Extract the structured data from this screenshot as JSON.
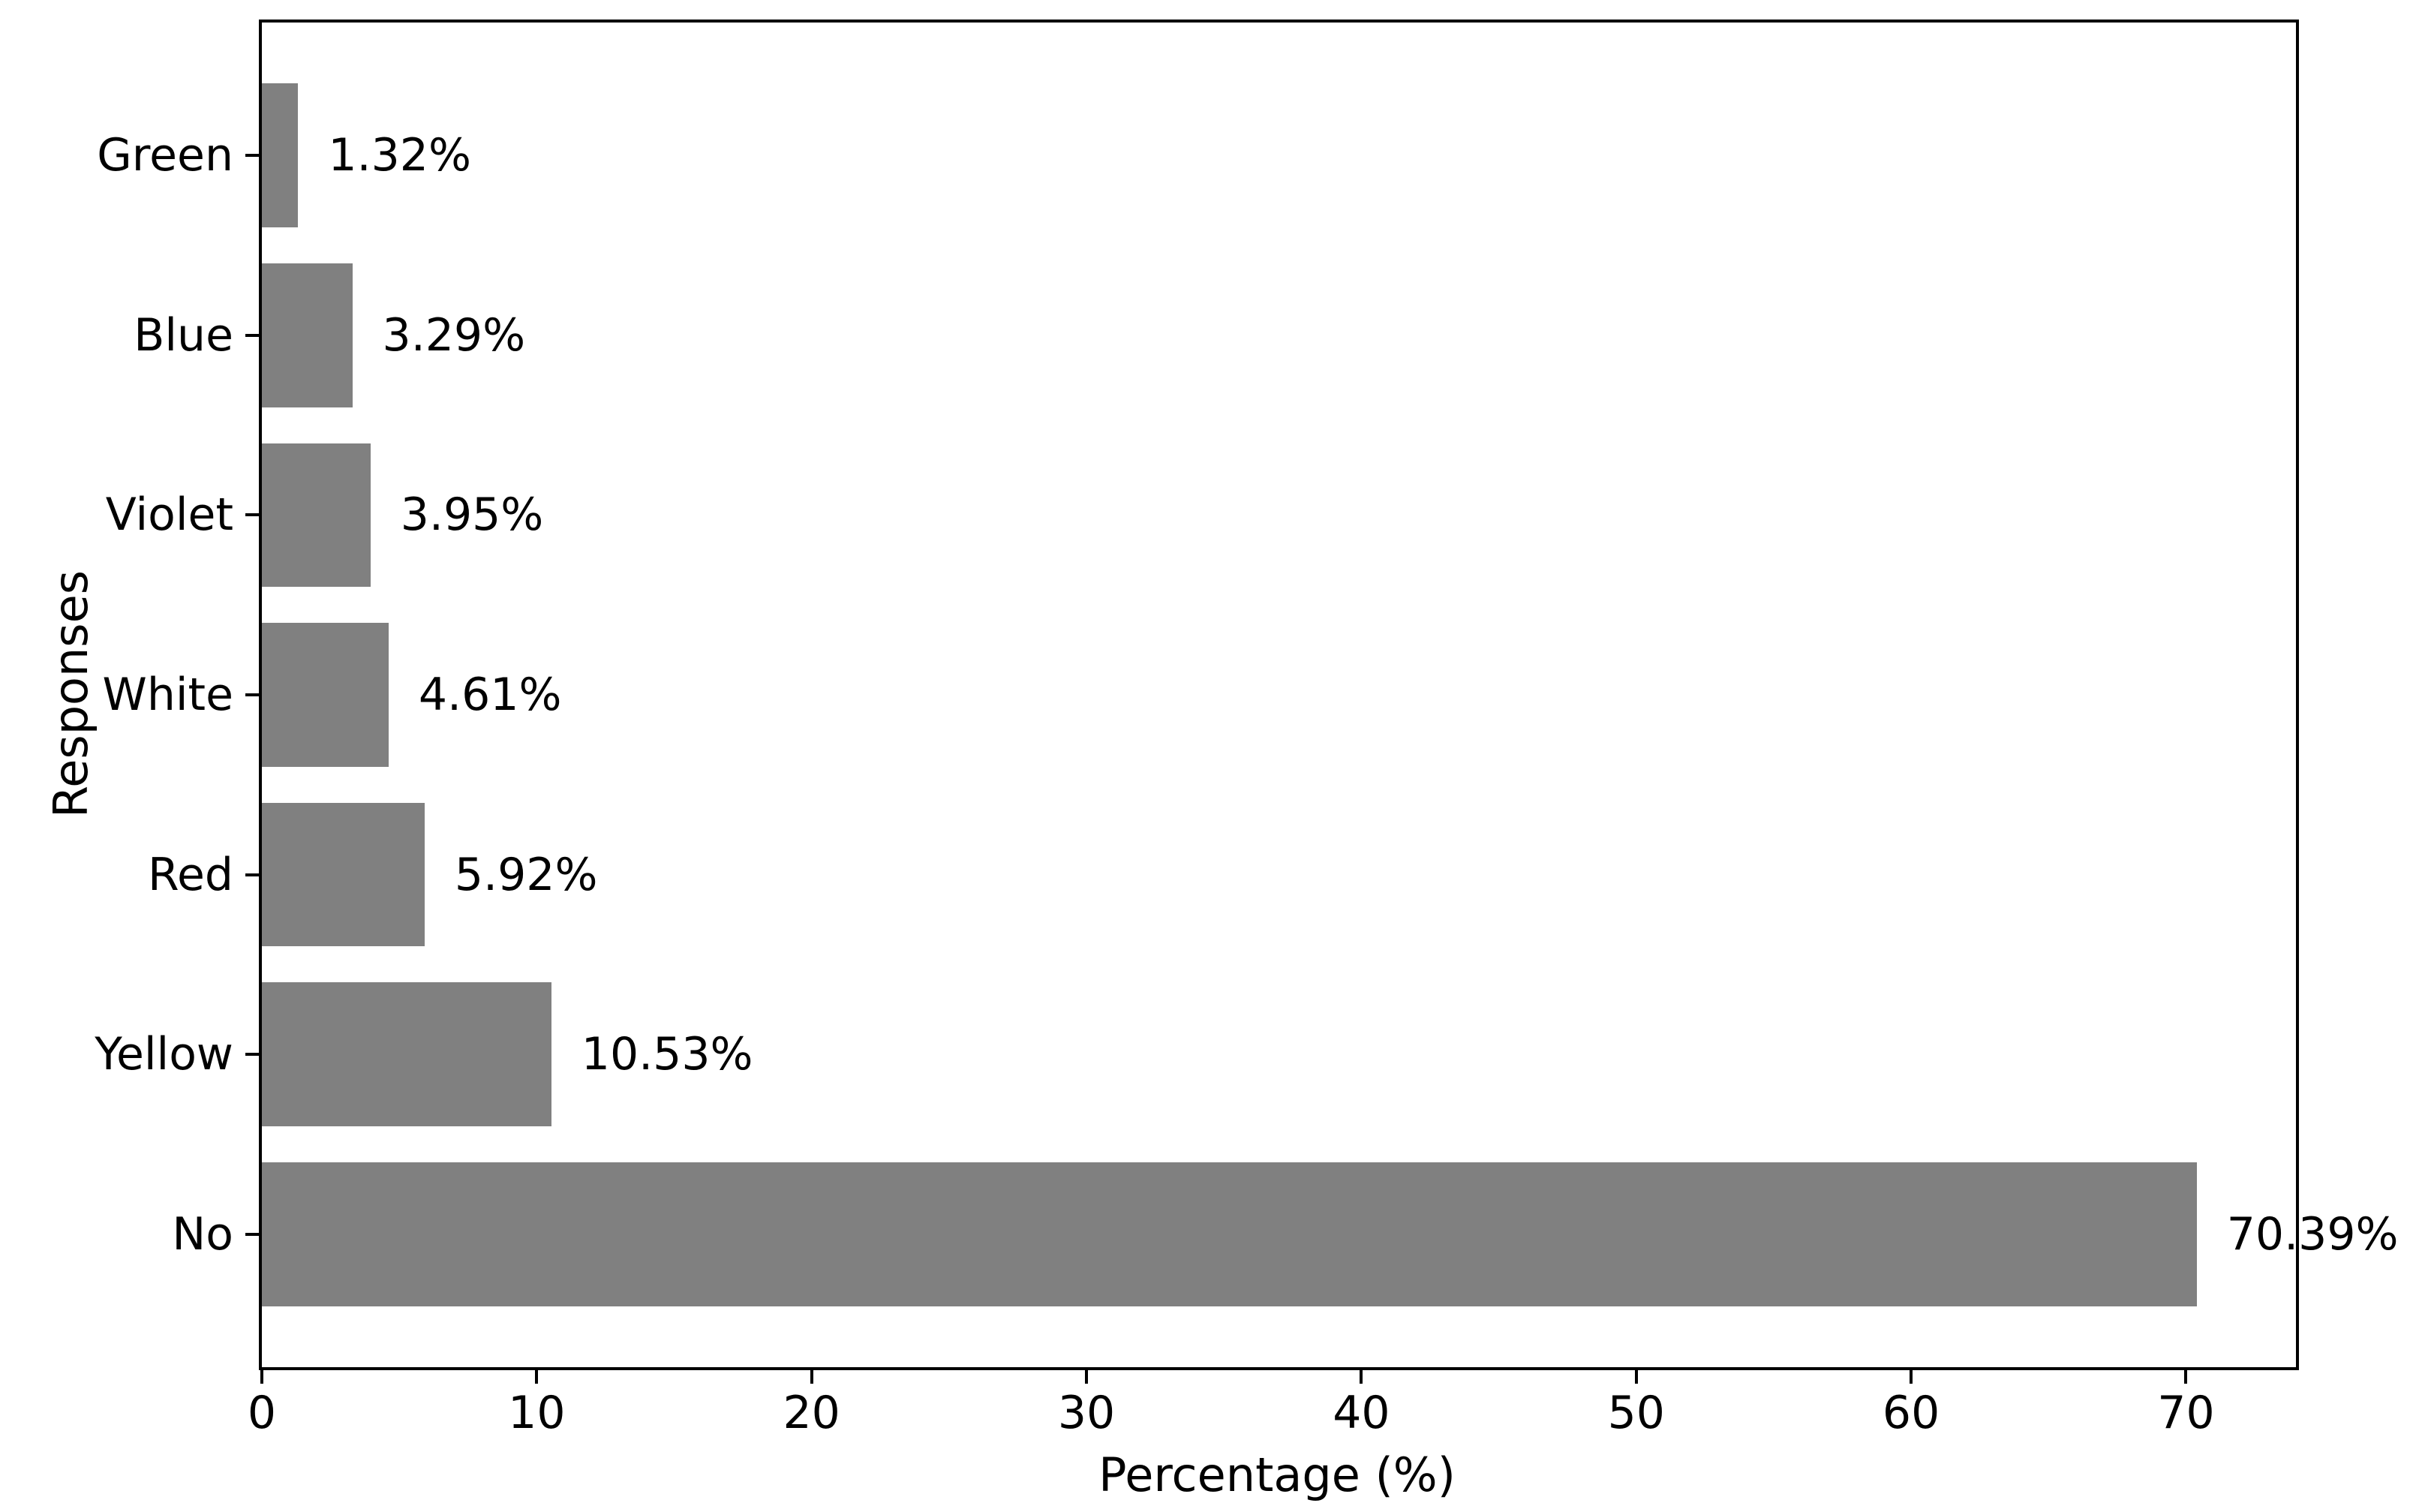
{
  "figure": {
    "background": "#ffffff"
  },
  "chart_data": {
    "type": "bar",
    "orientation": "horizontal",
    "title": "",
    "xlabel": "Percentage (%)",
    "ylabel": "Responses",
    "categories": [
      "Green",
      "Blue",
      "Violet",
      "White",
      "Red",
      "Yellow",
      "No"
    ],
    "values": [
      1.32,
      3.29,
      3.95,
      4.61,
      5.92,
      10.53,
      70.39
    ],
    "value_labels": [
      "1.32%",
      "3.29%",
      "3.95%",
      "4.61%",
      "5.92%",
      "10.53%",
      "70.39%"
    ],
    "x_ticks": [
      0,
      10,
      20,
      30,
      40,
      50,
      60,
      70
    ],
    "xlim": [
      0,
      74
    ],
    "bar_thickness_fraction": 0.8,
    "outer_margin_units": 0.74,
    "bar_color": "#808080",
    "axis_color": "#000000",
    "text_color": "#000000",
    "grid": false,
    "legend": null
  }
}
